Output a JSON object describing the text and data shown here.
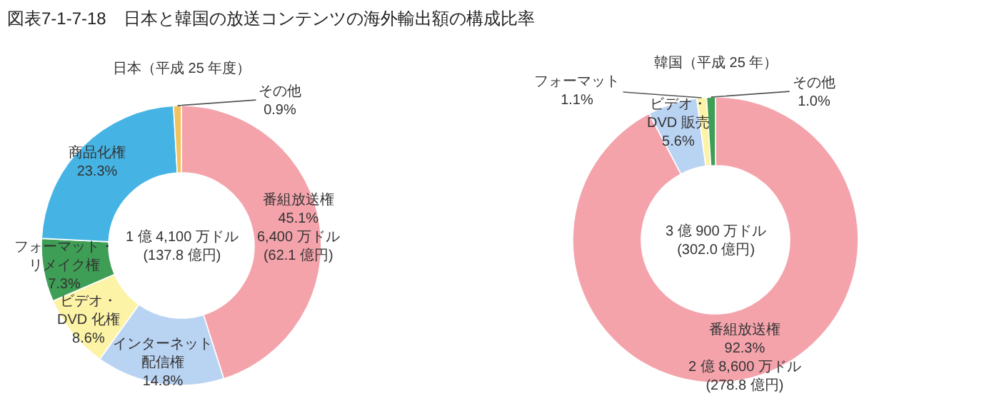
{
  "chart_data": [
    {
      "type": "donut",
      "title": "図表7-1-7-18　日本と韓国の放送コンテンツの海外輸出額の構成比率",
      "subtitle": "日本（平成 25 年度）",
      "categories": [
        "番組放送権",
        "インターネット配信権",
        "ビデオ・DVD 化権",
        "フォーマット・リメイク権",
        "商品化権",
        "その他"
      ],
      "values": [
        45.1,
        14.8,
        8.6,
        7.3,
        23.3,
        0.9
      ],
      "value_labels": [
        "45.1%\n6,400 万ドル\n(62.1 億円)",
        "14.8%",
        "8.6%",
        "7.3%",
        "23.3%",
        "0.9%"
      ],
      "colors": [
        "#f4a3ab",
        "#b9d3f2",
        "#fdf3a6",
        "#3f9e55",
        "#45b4e4",
        "#f2c25e"
      ],
      "annotations": [
        "1 億 4,100 万ドル\n(137.8 億円)"
      ]
    },
    {
      "type": "donut",
      "title": "韓国（平成 25 年）",
      "categories": [
        "番組放送権",
        "ビデオ・DVD 販売",
        "フォーマット",
        "その他"
      ],
      "values": [
        92.3,
        5.6,
        1.1,
        1.0
      ],
      "value_labels": [
        "92.3%\n2 億 8,600 万ドル\n(278.8 億円)",
        "5.6%",
        "1.1%",
        "1.0%"
      ],
      "colors": [
        "#f4a3ab",
        "#b9d3f2",
        "#fdf3a6",
        "#3f9e55"
      ],
      "annotations": [
        "3 億 900 万ドル\n(302.0 億円)"
      ]
    }
  ]
}
